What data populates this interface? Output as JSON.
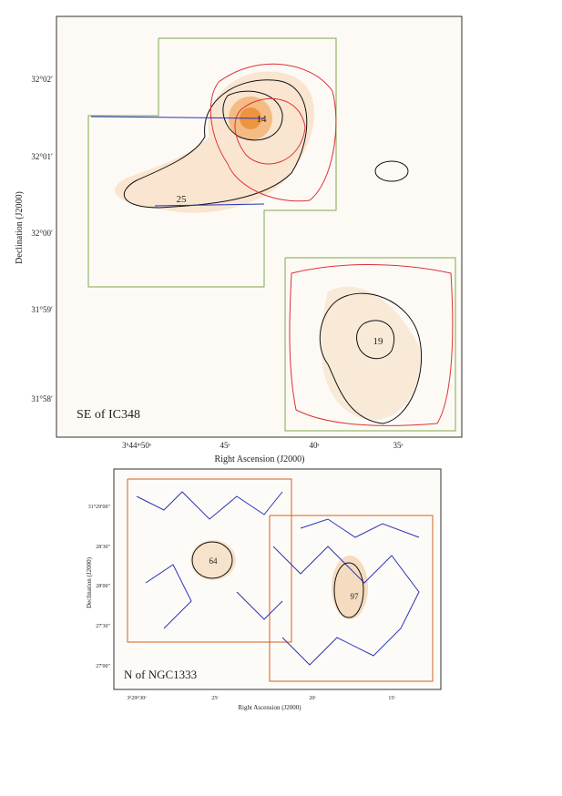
{
  "panels": [
    {
      "region_label": "SE of IC348",
      "x_axis_title": "Right Ascension (J2000)",
      "y_axis_title": "Declination (J2000)",
      "x_tick_labels": [
        "3ʰ44ᵐ50ˢ",
        "45ˢ",
        "40ˢ",
        "35ˢ"
      ],
      "y_tick_labels": [
        "32°02′",
        "32°01′",
        "32°00′",
        "31°59′",
        "31°58′"
      ],
      "source_labels": [
        "14",
        "25",
        "19"
      ]
    },
    {
      "region_label": "N of NGC1333",
      "x_axis_title": "Right Ascension (J2000)",
      "y_axis_title": "Declination (J2000)",
      "x_tick_labels": [
        "3ʰ29ᵐ30ˢ",
        "25ˢ",
        "20ˢ",
        "15ˢ"
      ],
      "y_tick_labels": [
        "31°29′00″",
        "28′30″",
        "28′00″",
        "27′30″",
        "27′00″"
      ],
      "source_labels": [
        "64",
        "97"
      ]
    }
  ]
}
